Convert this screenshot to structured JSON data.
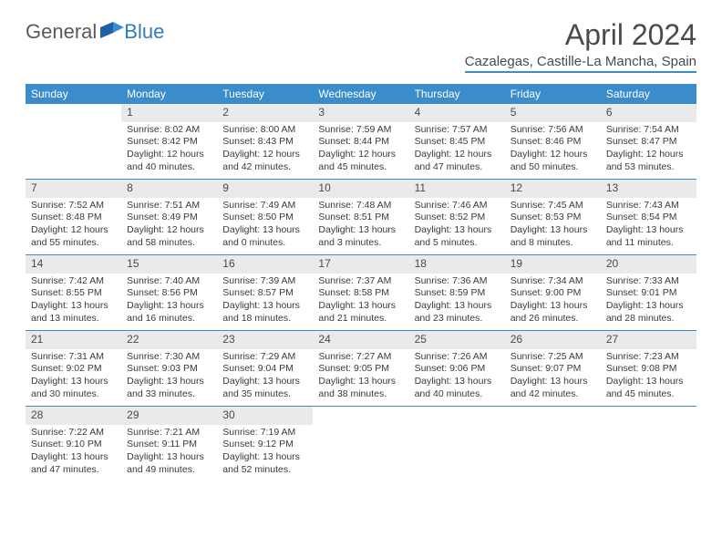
{
  "logo": {
    "text1": "General",
    "text2": "Blue"
  },
  "title": "April 2024",
  "location": "Cazalegas, Castille-La Mancha, Spain",
  "colors": {
    "accent": "#3b8ccb",
    "dayhead_bg": "#3b8ccb",
    "dayhead_fg": "#ffffff",
    "daynum_bg": "#eaeaea",
    "text": "#333333"
  },
  "day_names": [
    "Sunday",
    "Monday",
    "Tuesday",
    "Wednesday",
    "Thursday",
    "Friday",
    "Saturday"
  ],
  "weeks": [
    [
      {
        "n": "",
        "sr": "",
        "ss": "",
        "dl": ""
      },
      {
        "n": "1",
        "sr": "8:02 AM",
        "ss": "8:42 PM",
        "dl": "12 hours and 40 minutes."
      },
      {
        "n": "2",
        "sr": "8:00 AM",
        "ss": "8:43 PM",
        "dl": "12 hours and 42 minutes."
      },
      {
        "n": "3",
        "sr": "7:59 AM",
        "ss": "8:44 PM",
        "dl": "12 hours and 45 minutes."
      },
      {
        "n": "4",
        "sr": "7:57 AM",
        "ss": "8:45 PM",
        "dl": "12 hours and 47 minutes."
      },
      {
        "n": "5",
        "sr": "7:56 AM",
        "ss": "8:46 PM",
        "dl": "12 hours and 50 minutes."
      },
      {
        "n": "6",
        "sr": "7:54 AM",
        "ss": "8:47 PM",
        "dl": "12 hours and 53 minutes."
      }
    ],
    [
      {
        "n": "7",
        "sr": "7:52 AM",
        "ss": "8:48 PM",
        "dl": "12 hours and 55 minutes."
      },
      {
        "n": "8",
        "sr": "7:51 AM",
        "ss": "8:49 PM",
        "dl": "12 hours and 58 minutes."
      },
      {
        "n": "9",
        "sr": "7:49 AM",
        "ss": "8:50 PM",
        "dl": "13 hours and 0 minutes."
      },
      {
        "n": "10",
        "sr": "7:48 AM",
        "ss": "8:51 PM",
        "dl": "13 hours and 3 minutes."
      },
      {
        "n": "11",
        "sr": "7:46 AM",
        "ss": "8:52 PM",
        "dl": "13 hours and 5 minutes."
      },
      {
        "n": "12",
        "sr": "7:45 AM",
        "ss": "8:53 PM",
        "dl": "13 hours and 8 minutes."
      },
      {
        "n": "13",
        "sr": "7:43 AM",
        "ss": "8:54 PM",
        "dl": "13 hours and 11 minutes."
      }
    ],
    [
      {
        "n": "14",
        "sr": "7:42 AM",
        "ss": "8:55 PM",
        "dl": "13 hours and 13 minutes."
      },
      {
        "n": "15",
        "sr": "7:40 AM",
        "ss": "8:56 PM",
        "dl": "13 hours and 16 minutes."
      },
      {
        "n": "16",
        "sr": "7:39 AM",
        "ss": "8:57 PM",
        "dl": "13 hours and 18 minutes."
      },
      {
        "n": "17",
        "sr": "7:37 AM",
        "ss": "8:58 PM",
        "dl": "13 hours and 21 minutes."
      },
      {
        "n": "18",
        "sr": "7:36 AM",
        "ss": "8:59 PM",
        "dl": "13 hours and 23 minutes."
      },
      {
        "n": "19",
        "sr": "7:34 AM",
        "ss": "9:00 PM",
        "dl": "13 hours and 26 minutes."
      },
      {
        "n": "20",
        "sr": "7:33 AM",
        "ss": "9:01 PM",
        "dl": "13 hours and 28 minutes."
      }
    ],
    [
      {
        "n": "21",
        "sr": "7:31 AM",
        "ss": "9:02 PM",
        "dl": "13 hours and 30 minutes."
      },
      {
        "n": "22",
        "sr": "7:30 AM",
        "ss": "9:03 PM",
        "dl": "13 hours and 33 minutes."
      },
      {
        "n": "23",
        "sr": "7:29 AM",
        "ss": "9:04 PM",
        "dl": "13 hours and 35 minutes."
      },
      {
        "n": "24",
        "sr": "7:27 AM",
        "ss": "9:05 PM",
        "dl": "13 hours and 38 minutes."
      },
      {
        "n": "25",
        "sr": "7:26 AM",
        "ss": "9:06 PM",
        "dl": "13 hours and 40 minutes."
      },
      {
        "n": "26",
        "sr": "7:25 AM",
        "ss": "9:07 PM",
        "dl": "13 hours and 42 minutes."
      },
      {
        "n": "27",
        "sr": "7:23 AM",
        "ss": "9:08 PM",
        "dl": "13 hours and 45 minutes."
      }
    ],
    [
      {
        "n": "28",
        "sr": "7:22 AM",
        "ss": "9:10 PM",
        "dl": "13 hours and 47 minutes."
      },
      {
        "n": "29",
        "sr": "7:21 AM",
        "ss": "9:11 PM",
        "dl": "13 hours and 49 minutes."
      },
      {
        "n": "30",
        "sr": "7:19 AM",
        "ss": "9:12 PM",
        "dl": "13 hours and 52 minutes."
      },
      {
        "n": "",
        "sr": "",
        "ss": "",
        "dl": ""
      },
      {
        "n": "",
        "sr": "",
        "ss": "",
        "dl": ""
      },
      {
        "n": "",
        "sr": "",
        "ss": "",
        "dl": ""
      },
      {
        "n": "",
        "sr": "",
        "ss": "",
        "dl": ""
      }
    ]
  ],
  "labels": {
    "sunrise": "Sunrise: ",
    "sunset": "Sunset: ",
    "daylight": "Daylight: "
  }
}
